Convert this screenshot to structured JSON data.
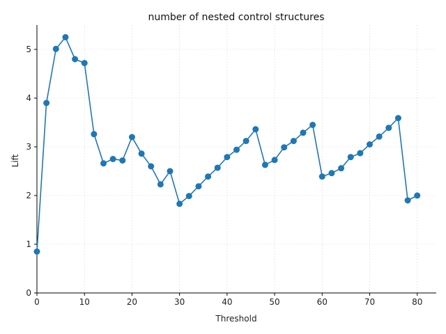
{
  "chart_data": {
    "type": "line",
    "title": "number of nested control structures",
    "xlabel": "Threshold",
    "ylabel": "Lift",
    "xlim": [
      0,
      84
    ],
    "ylim": [
      0,
      5.5
    ],
    "xticks": [
      0,
      10,
      20,
      30,
      40,
      50,
      60,
      70,
      80
    ],
    "yticks": [
      0,
      1,
      2,
      3,
      4,
      5
    ],
    "grid": true,
    "color": "#1f77b4",
    "series": [
      {
        "x": [
          0,
          2,
          4,
          6,
          8,
          10,
          12,
          14,
          16,
          18,
          20,
          22,
          24,
          26,
          28,
          30,
          32,
          34,
          36,
          38,
          40,
          42,
          44,
          46,
          48,
          50,
          52,
          54,
          56,
          58,
          60,
          62,
          64,
          66,
          68,
          70,
          72,
          74,
          76,
          78,
          80
        ],
        "y": [
          0.85,
          3.9,
          5.01,
          5.25,
          4.8,
          4.72,
          3.26,
          2.66,
          2.75,
          2.72,
          3.2,
          2.86,
          2.6,
          2.23,
          2.5,
          1.83,
          1.99,
          2.19,
          2.39,
          2.57,
          2.79,
          2.94,
          3.12,
          3.36,
          2.63,
          2.73,
          2.99,
          3.12,
          3.29,
          3.45,
          2.39,
          2.46,
          2.56,
          2.79,
          2.87,
          3.05,
          3.21,
          3.39,
          3.59,
          1.9,
          2.0
        ]
      }
    ]
  }
}
